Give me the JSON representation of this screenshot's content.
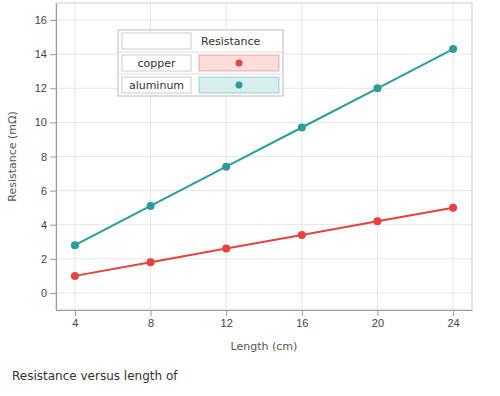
{
  "chart_data": {
    "type": "line",
    "title": "Resistance versus length of",
    "x_label": "Length (cm)",
    "y_label": "Resistance (mΩ)",
    "legend_title": "Resistance",
    "x": [
      4,
      8,
      12,
      16,
      20,
      24
    ],
    "series": [
      {
        "name": "copper",
        "color": "#e8413f",
        "marker": "circle",
        "values": [
          1.0,
          1.8,
          2.6,
          3.4,
          4.2,
          5.0
        ]
      },
      {
        "name": "aluminum",
        "color": "#2a9d9b",
        "marker": "circle",
        "values": [
          2.8,
          5.1,
          7.4,
          9.7,
          12.0,
          14.3
        ]
      }
    ],
    "xlim": [
      3,
      25
    ],
    "xticks": [
      4,
      8,
      12,
      16,
      20,
      24
    ],
    "ylim": [
      -1,
      17
    ],
    "yticks": [
      0,
      2,
      4,
      6,
      8,
      10,
      12,
      14,
      16
    ],
    "grid": true,
    "legend": "top-left"
  }
}
